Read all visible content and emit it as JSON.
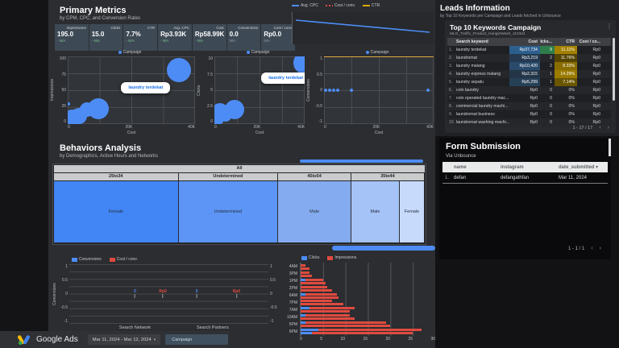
{
  "primary_metrics": {
    "title": "Primary Metrics",
    "subtitle": "by CPM, CPC, and Conversion Rates",
    "scorecards": [
      {
        "label": "Impressions",
        "value": "195.0",
        "delta": "- N/A",
        "delta_type": "green"
      },
      {
        "label": "Clicks",
        "value": "15.0",
        "delta": "- N/A",
        "delta_type": "green"
      },
      {
        "label": "CTR",
        "value": "7.7%",
        "delta": "- N/A",
        "delta_type": "green"
      },
      {
        "label": "Avg. CPC",
        "value": "Rp3.93K",
        "delta": "- N/A",
        "delta_type": "green"
      },
      {
        "label": "Cost",
        "value": "Rp58.99K",
        "delta": "- N/A",
        "delta_type": "green"
      },
      {
        "label": "Conversions",
        "value": "0.0",
        "delta": "N/A",
        "delta_type": "muted"
      },
      {
        "label": "Cost / conv.",
        "value": "Rp0.0",
        "delta": "N/A",
        "delta_type": "muted"
      }
    ]
  },
  "behaviors": {
    "title": "Behaviors Analysis",
    "subtitle": "by Demographics, Active Hours and Networks"
  },
  "chart_data": {
    "cpc_trend": {
      "type": "line",
      "legend": [
        {
          "label": "Avg. CPC",
          "color": "#4d8cf5",
          "swatch": "line"
        },
        {
          "label": "Cost / conv.",
          "color": "#e04a3f",
          "swatch": "dash"
        },
        {
          "label": "CTR",
          "color": "#d8a800",
          "swatch": "line"
        }
      ],
      "series": [
        {
          "name": "Avg. CPC",
          "shape": "single blue line declining slightly from left to right"
        }
      ]
    },
    "bubble_impressions": {
      "type": "scatter",
      "legend": [
        {
          "label": "Campaign",
          "color": "#4d8cf5",
          "swatch": "dot"
        }
      ],
      "xlabel": "Cost",
      "ylabel": "Impressions",
      "xticks": [
        "0",
        "20K",
        "40K"
      ],
      "yticks": [
        "100",
        "75",
        "50",
        "25",
        "0"
      ],
      "xlim": [
        0,
        40000
      ],
      "ylim": [
        0,
        100
      ],
      "tooltip": "laundry terdekat",
      "tooltip_left_pct": 42,
      "tooltip_top_pct": 38,
      "points": [
        {
          "x": 300,
          "y": 30,
          "r": 2
        },
        {
          "x": 1500,
          "y": 7,
          "r": 12
        },
        {
          "x": 3500,
          "y": 12,
          "r": 10
        },
        {
          "x": 6000,
          "y": 21,
          "r": 9
        },
        {
          "x": 9500,
          "y": 23,
          "r": 13
        },
        {
          "x": 35000,
          "y": 80,
          "r": 15
        }
      ]
    },
    "bubble_clicks": {
      "type": "scatter",
      "legend": [
        {
          "label": "Campaign",
          "color": "#4d8cf5",
          "swatch": "dot"
        }
      ],
      "xlabel": "Cost",
      "ylabel": "Clicks",
      "xticks": [
        "0",
        "20K",
        "40K"
      ],
      "yticks": [
        "10",
        "7.5",
        "5",
        "2.5",
        "0"
      ],
      "xlim": [
        0,
        40000
      ],
      "ylim": [
        0,
        10
      ],
      "tooltip": "laundry terdekat",
      "tooltip_left_pct": 52,
      "tooltip_top_pct": 24,
      "points": [
        {
          "x": 1000,
          "y": 0.8,
          "r": 9
        },
        {
          "x": 2500,
          "y": 1.8,
          "r": 11
        },
        {
          "x": 5000,
          "y": 1.2,
          "r": 7
        },
        {
          "x": 9000,
          "y": 2.2,
          "r": 12
        },
        {
          "x": 40000,
          "y": 9,
          "r": 14
        }
      ]
    },
    "scatter_conversions": {
      "type": "scatter",
      "legend": [
        {
          "label": "Campaign",
          "color": "#4d8cf5",
          "swatch": "dot"
        }
      ],
      "xlabel": "Cost",
      "ylabel": "Conversions",
      "xticks": [
        "0",
        "20K",
        "40K"
      ],
      "yticks": [
        "1",
        "0.5",
        "0",
        "-0.5",
        "-1"
      ],
      "xlim": [
        0,
        40000
      ],
      "ylim": [
        -1,
        1
      ],
      "hline": {
        "y": 1,
        "color": "#e2a63d"
      },
      "points": [
        {
          "x": 500,
          "y": 0,
          "r": 2
        },
        {
          "x": 2000,
          "y": 0,
          "r": 2
        },
        {
          "x": 3500,
          "y": 0,
          "r": 2
        },
        {
          "x": 5000,
          "y": 0,
          "r": 2
        },
        {
          "x": 10000,
          "y": 0,
          "r": 2
        },
        {
          "x": 38000,
          "y": 0,
          "r": 2
        }
      ]
    },
    "treemap": {
      "type": "treemap",
      "root_label": "All",
      "groups": [
        {
          "label": "25to34",
          "width_pct": 33.6,
          "cells": [
            {
              "label": "Female",
              "width_pct": 100,
              "color": "#4285f4"
            }
          ]
        },
        {
          "label": "Undetermined",
          "width_pct": 26.9,
          "cells": [
            {
              "label": "Undetermined",
              "width_pct": 100,
              "color": "#5c95f5"
            }
          ]
        },
        {
          "label": "45to54",
          "width_pct": 19.7,
          "cells": [
            {
              "label": "Male",
              "width_pct": 100,
              "color": "#84abef"
            }
          ]
        },
        {
          "label": "35to44",
          "width_pct": 19.8,
          "cells": [
            {
              "label": "Male",
              "width_pct": 66,
              "color": "#a6c3f8"
            },
            {
              "label": "Female",
              "width_pct": 34,
              "color": "#c7dafc"
            }
          ]
        }
      ]
    },
    "network_chart": {
      "type": "line",
      "legend": [
        {
          "label": "Conversions",
          "color": "#4d8cf5",
          "swatch": "square"
        },
        {
          "label": "Cost / conv.",
          "color": "#e04a3f",
          "swatch": "square"
        }
      ],
      "ylabel": "Conversions",
      "yticks": [
        "1",
        "0.5",
        "0",
        "-0.5",
        "-1"
      ],
      "categories": [
        "Search Network",
        "Search Partners"
      ],
      "cat_x_pct": [
        33,
        72
      ],
      "markers": [
        {
          "label": "0",
          "color": "#4d8cf5",
          "x_pct": 33
        },
        {
          "label": "Rp0",
          "color": "#e04a3f",
          "x_pct": 47
        },
        {
          "label": "0",
          "color": "#4d8cf5",
          "x_pct": 64
        },
        {
          "label": "Rp0",
          "color": "#e04a3f",
          "x_pct": 84
        }
      ],
      "values": {
        "conversions": [
          "0",
          "0"
        ],
        "cost_per_conv": [
          "Rp0",
          "Rp0"
        ]
      }
    },
    "hours_chart": {
      "type": "bar",
      "legend": [
        {
          "label": "Clicks",
          "color": "#4d8cf5",
          "swatch": "square"
        },
        {
          "label": "Impressions",
          "color": "#e04a3f",
          "swatch": "square"
        }
      ],
      "xmax": 30,
      "xticks": [
        "0",
        "5",
        "10",
        "15",
        "20",
        "25",
        "30"
      ],
      "categories": [
        {
          "label": "4AM",
          "bars": [
            {
              "clicks": 0,
              "impressions": 1
            },
            {
              "clicks": 0,
              "impressions": 2
            }
          ]
        },
        {
          "label": "3PM",
          "bars": [
            {
              "clicks": 0,
              "impressions": 2
            },
            {
              "clicks": 0,
              "impressions": 2.5
            }
          ]
        },
        {
          "label": "1PM",
          "bars": [
            {
              "clicks": 1,
              "impressions": 5
            },
            {
              "clicks": 0,
              "impressions": 5.5
            }
          ]
        },
        {
          "label": "2PM",
          "bars": [
            {
              "clicks": 0,
              "impressions": 6
            },
            {
              "clicks": 0,
              "impressions": 7
            }
          ]
        },
        {
          "label": "6AM",
          "bars": [
            {
              "clicks": 1,
              "impressions": 8
            },
            {
              "clicks": 0,
              "impressions": 8.5
            }
          ]
        },
        {
          "label": "7PM",
          "bars": [
            {
              "clicks": 0,
              "impressions": 7
            },
            {
              "clicks": 0,
              "impressions": 9.5
            }
          ]
        },
        {
          "label": "7AM",
          "bars": [
            {
              "clicks": 2,
              "impressions": 12
            },
            {
              "clicks": 0,
              "impressions": 11
            }
          ]
        },
        {
          "label": "10AM",
          "bars": [
            {
              "clicks": 1,
              "impressions": 11
            },
            {
              "clicks": 0,
              "impressions": 12
            }
          ]
        },
        {
          "label": "5PM",
          "bars": [
            {
              "clicks": 1,
              "impressions": 19
            },
            {
              "clicks": 0,
              "impressions": 20
            }
          ]
        },
        {
          "label": "6PM",
          "bars": [
            {
              "clicks": 4,
              "impressions": 27
            },
            {
              "clicks": 2.5,
              "impressions": 25
            }
          ]
        }
      ]
    }
  },
  "leads": {
    "title": "Leads Information",
    "subtitle": "by Top 10 Keywords per Campaign and Leads fetched in Unbounce",
    "card_title": "Top 10 Keywords Campaign",
    "card_subtitle": "MLG_Traffic_Product_HanginWash_110324",
    "menu_icon": "⋮",
    "columns": [
      "Search keyword",
      "Cost",
      "Clicks...",
      "CTR",
      "Cost / co..."
    ],
    "rows": [
      {
        "n": "1.",
        "keyword": "laundry terdekat",
        "cost": "Rp37,734",
        "clicks": "9",
        "ctr": "11.11%",
        "cost_conv": "Rp0",
        "cost_bg": "#2d5f8e",
        "clicks_bg": "#2f7d4a",
        "ctr_bg": "#a38000"
      },
      {
        "n": "2.",
        "keyword": "laundromat",
        "cost": "Rp3,219",
        "clicks": "2",
        "ctr": "11.76%",
        "cost_conv": "Rp0",
        "cost_bg": "#253a50",
        "ctr_bg": "#554500"
      },
      {
        "n": "3.",
        "keyword": "laundry malang",
        "cost": "Rp10,420",
        "clicks": "2",
        "ctr": "8.33%",
        "cost_conv": "Rp0",
        "cost_bg": "#2a4a6b",
        "ctr_bg": "#8a6d00"
      },
      {
        "n": "4.",
        "keyword": "laundry express malang",
        "cost": "Rp2,315",
        "clicks": "1",
        "ctr": "14.29%",
        "cost_conv": "Rp0",
        "cost_bg": "#233547",
        "ctr_bg": "#9a7b00"
      },
      {
        "n": "5.",
        "keyword": "laundry sepatu",
        "cost": "Rp5,299",
        "clicks": "1",
        "ctr": "7.14%",
        "cost_conv": "Rp0",
        "cost_bg": "#264056",
        "ctr_bg": "#6b5600"
      },
      {
        "n": "6.",
        "keyword": "coin laundry",
        "cost": "Rp0",
        "clicks": "0",
        "ctr": "0%",
        "cost_conv": "Rp0"
      },
      {
        "n": "7.",
        "keyword": "coin operated laundry mac...",
        "cost": "Rp0",
        "clicks": "0",
        "ctr": "0%",
        "cost_conv": "Rp0"
      },
      {
        "n": "8.",
        "keyword": "commercial laundry machi...",
        "cost": "Rp0",
        "clicks": "0",
        "ctr": "0%",
        "cost_conv": "Rp0"
      },
      {
        "n": "9.",
        "keyword": "laundromat business",
        "cost": "Rp0",
        "clicks": "0",
        "ctr": "0%",
        "cost_conv": "Rp0"
      },
      {
        "n": "10.",
        "keyword": "laundromat washing machi...",
        "cost": "Rp0",
        "clicks": "0",
        "ctr": "0%",
        "cost_conv": "Rp0"
      }
    ],
    "pagination": {
      "text": "1 - 17 / 17",
      "prev": "‹",
      "next": "›"
    }
  },
  "form_submission": {
    "title": "Form Submission",
    "subtitle": "Via Unbounce",
    "columns": [
      "name",
      "instagram",
      "date_submitted"
    ],
    "sort_indicator": "▾",
    "rows": [
      {
        "n": "1.",
        "name": "defan",
        "instagram": "defangathfan",
        "date": "Mar 11, 2024"
      }
    ],
    "pagination": {
      "text": "1 - 1 / 1",
      "prev": "‹",
      "next": "›"
    }
  },
  "footer": {
    "brand": "Google Ads",
    "date_range": "Mar 11, 2024 - Mar 12, 2024",
    "caret": "▾",
    "chip": "Campaign",
    "logo_colors": {
      "yellow": "#fbbc04",
      "blue": "#4285f4",
      "green": "#34a853"
    }
  }
}
